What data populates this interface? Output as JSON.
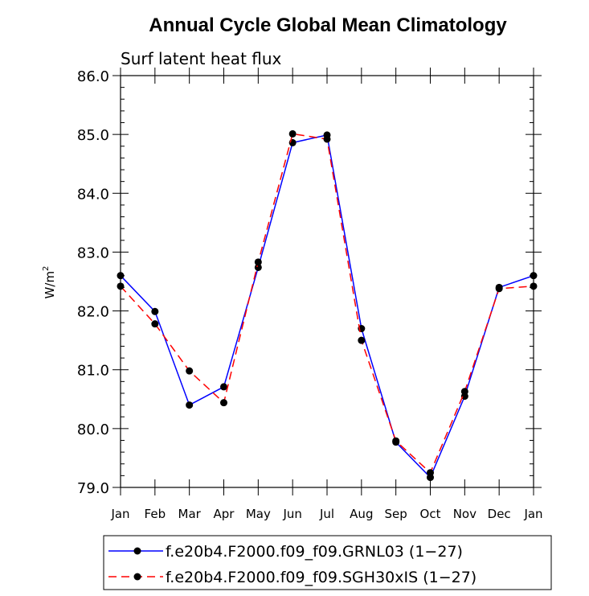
{
  "chart_data": {
    "type": "line",
    "title": "Annual Cycle Global Mean Climatology",
    "subtitle": "Surf latent heat flux",
    "ylabel_main": "W/m",
    "ylabel_sup": "2",
    "categories": [
      "Jan",
      "Feb",
      "Mar",
      "Apr",
      "May",
      "Jun",
      "Jul",
      "Aug",
      "Sep",
      "Oct",
      "Nov",
      "Dec",
      "Jan"
    ],
    "ylim": [
      79.0,
      86.0
    ],
    "y_ticks": [
      "79.0",
      "80.0",
      "81.0",
      "82.0",
      "83.0",
      "84.0",
      "85.0",
      "86.0"
    ],
    "legend_position": "bottom",
    "series": [
      {
        "name": "f.e20b4.F2000.f09_f09.GRNL03 (1−27)",
        "color": "#0000ff",
        "dash": "solid",
        "values": [
          82.6,
          81.99,
          80.4,
          80.71,
          82.74,
          84.86,
          84.99,
          81.7,
          79.77,
          79.17,
          80.55,
          82.4,
          82.6
        ]
      },
      {
        "name": "f.e20b4.F2000.f09_f09.SGH30xIS (1−27)",
        "color": "#ff0000",
        "dash": "dashed",
        "values": [
          82.42,
          81.78,
          80.98,
          80.44,
          82.83,
          85.01,
          84.92,
          81.5,
          79.79,
          79.25,
          80.63,
          82.38,
          82.42
        ]
      }
    ]
  }
}
